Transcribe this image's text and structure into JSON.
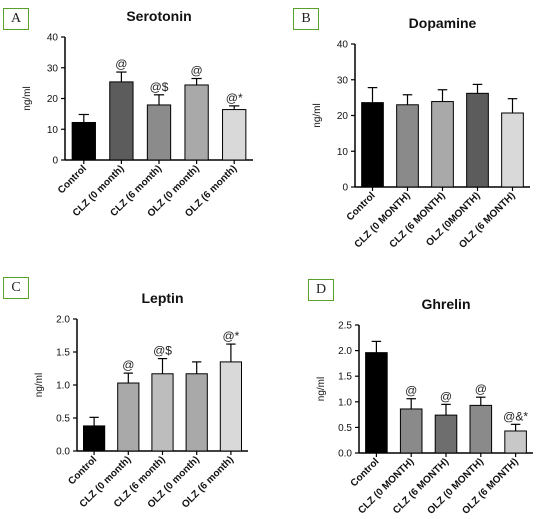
{
  "panels": [
    {
      "letter": "A",
      "chart": {
        "type": "bar",
        "title": "Serotonin",
        "ylabel": "ng/ml",
        "ylim": [
          0,
          40
        ],
        "yticks": [
          0,
          10,
          20,
          30,
          40
        ],
        "categories": [
          "Control",
          "CLZ (0 month)",
          "CLZ (6 month)",
          "OLZ (0 month)",
          "OLZ (6 month)"
        ],
        "values": [
          12.2,
          25.4,
          17.9,
          24.4,
          16.4
        ],
        "errors": [
          2.6,
          3.2,
          3.3,
          2.1,
          1.2
        ],
        "annotations": [
          "",
          "@",
          "@$",
          "@",
          "@*"
        ],
        "colors": [
          "#000000",
          "#5c5c5c",
          "#8b8b8b",
          "#a9a9a9",
          "#d9d9d9"
        ]
      }
    },
    {
      "letter": "B",
      "chart": {
        "type": "bar",
        "title": "Dopamine",
        "ylabel": "ng/ml",
        "ylim": [
          0,
          40
        ],
        "yticks": [
          0,
          10,
          20,
          30,
          40
        ],
        "categories": [
          "Control",
          "CLZ (0 MONTH)",
          "CLZ (6 MONTH)",
          "OLZ (0MONTH)",
          "OLZ (6 MONTH)"
        ],
        "values": [
          23.6,
          23.0,
          23.9,
          26.2,
          20.7
        ],
        "errors": [
          4.2,
          2.8,
          3.3,
          2.5,
          4.0
        ],
        "annotations": [
          "",
          "",
          "",
          "",
          ""
        ],
        "colors": [
          "#000000",
          "#8a8a8a",
          "#a9a9a9",
          "#5c5c5c",
          "#d9d9d9"
        ]
      }
    },
    {
      "letter": "C",
      "chart": {
        "type": "bar",
        "title": "Leptin",
        "ylabel": "ng/ml",
        "ylim": [
          0,
          2.0
        ],
        "yticks": [
          0.0,
          0.5,
          1.0,
          1.5,
          2.0
        ],
        "categories": [
          "Control",
          "CLZ (0 month)",
          "CLZ (6 month)",
          "OLZ (0 month)",
          "OLZ (6 month)"
        ],
        "values": [
          0.38,
          1.03,
          1.17,
          1.17,
          1.35
        ],
        "errors": [
          0.13,
          0.15,
          0.23,
          0.18,
          0.27
        ],
        "annotations": [
          "",
          "@",
          "@$",
          "",
          "@*"
        ],
        "colors": [
          "#000000",
          "#a9a9a9",
          "#bdbdbd",
          "#a9a9a9",
          "#d9d9d9"
        ]
      }
    },
    {
      "letter": "D",
      "chart": {
        "type": "bar",
        "title": "Ghrelin",
        "ylabel": "ng/ml",
        "ylim": [
          0,
          2.5
        ],
        "yticks": [
          0.0,
          0.5,
          1.0,
          1.5,
          2.0,
          2.5
        ],
        "categories": [
          "Control",
          "CLZ (0 MONTH)",
          "CLZ (6 MONTH)",
          "OLZ (0 MONTH)",
          "OLZ (6 MONTH)"
        ],
        "values": [
          1.96,
          0.86,
          0.74,
          0.93,
          0.43
        ],
        "errors": [
          0.22,
          0.2,
          0.21,
          0.16,
          0.13
        ],
        "annotations": [
          "",
          "@",
          "@",
          "@",
          "@&*"
        ],
        "colors": [
          "#000000",
          "#8a8a8a",
          "#6e6e6e",
          "#8a8a8a",
          "#c8c8c8"
        ]
      }
    }
  ]
}
